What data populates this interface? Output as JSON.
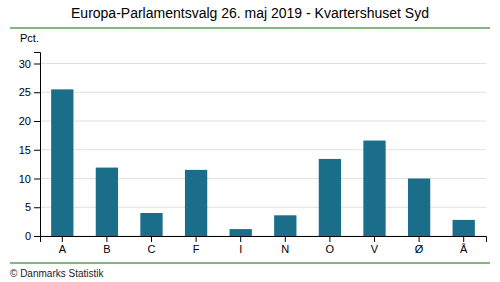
{
  "chart_data": {
    "type": "bar",
    "title": "Europa-Parlamentsvalg 26. maj 2019 - Kvartershuset Syd",
    "categories": [
      "A",
      "B",
      "C",
      "F",
      "I",
      "N",
      "O",
      "V",
      "Ø",
      "Å"
    ],
    "values": [
      25.5,
      11.9,
      4.0,
      11.5,
      1.2,
      3.6,
      13.4,
      16.6,
      10.0,
      2.8
    ],
    "color": "#1a6e8a",
    "ylabel": "Pct.",
    "ylim": [
      0,
      32
    ],
    "yticks": [
      0,
      5,
      10,
      15,
      20,
      25,
      30
    ],
    "grid": true,
    "annotations": [
      "© Danmarks Statistik"
    ]
  }
}
